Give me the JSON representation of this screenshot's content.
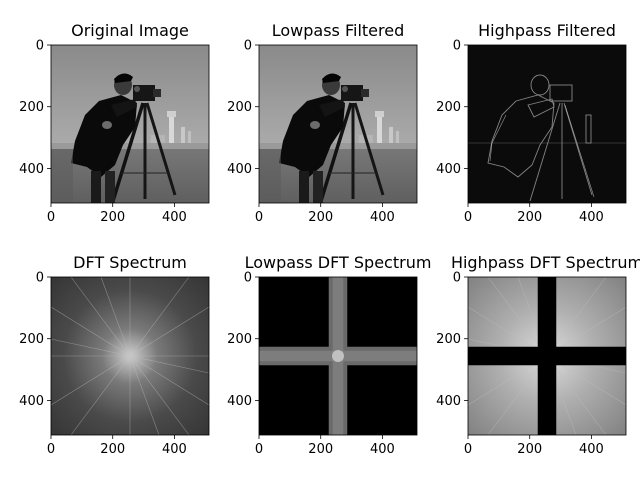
{
  "figure": {
    "background": "#ffffff",
    "panels": [
      {
        "title": "Original Image",
        "image_kind": "photo-grayscale",
        "description_icon": "cameraman-photo"
      },
      {
        "title": "Lowpass Filtered",
        "image_kind": "photo-grayscale-smoothed",
        "description_icon": "cameraman-photo"
      },
      {
        "title": "Highpass Filtered",
        "image_kind": "edge-map",
        "description_icon": "edge-map"
      },
      {
        "title": "DFT Spectrum",
        "image_kind": "spectrum",
        "description_icon": "spectrum"
      },
      {
        "title": "Lowpass DFT Spectrum",
        "image_kind": "spectrum-lowpass",
        "description_icon": "spectrum"
      },
      {
        "title": "Highpass DFT Spectrum",
        "image_kind": "spectrum-highpass",
        "description_icon": "spectrum"
      }
    ]
  },
  "chart_data": {
    "type": "heatmap",
    "colormap": "gray",
    "xticks": [
      0,
      200,
      400
    ],
    "yticks": [
      0,
      200,
      400
    ],
    "xlim": [
      0,
      512
    ],
    "ylim": [
      512,
      0
    ],
    "image_size": [
      512,
      512
    ],
    "lowpass_band": {
      "from": 226,
      "to": 286
    },
    "titles": [
      "Original Image",
      "Lowpass Filtered",
      "Highpass Filtered",
      "DFT Spectrum",
      "Lowpass DFT Spectrum",
      "Highpass DFT Spectrum"
    ]
  }
}
